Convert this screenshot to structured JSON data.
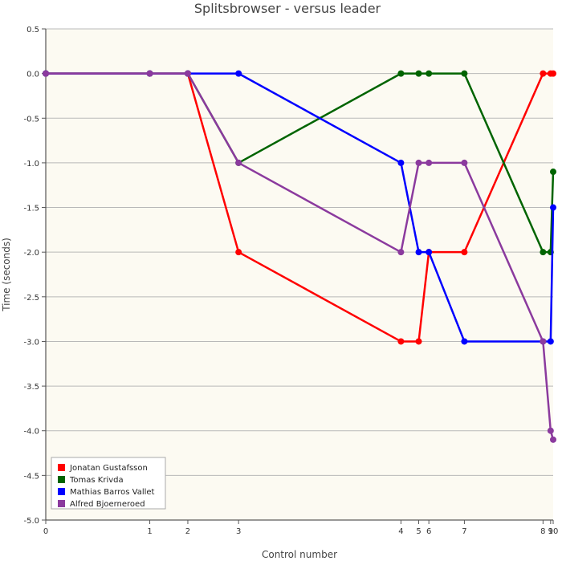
{
  "chart_data": {
    "type": "line",
    "title": "Splitsbrowser - versus leader",
    "xlabel": "Control number",
    "ylabel": "Time (seconds)",
    "x_ticks": [
      0,
      1,
      2,
      3,
      4,
      5,
      6,
      7,
      8,
      9,
      10
    ],
    "x_tick_labels": [
      "0",
      "1",
      "2",
      "3",
      "4",
      "5",
      "6",
      "7",
      "8",
      "9",
      "10"
    ],
    "x_positions": [
      0,
      2.05,
      2.8,
      3.8,
      7.0,
      7.35,
      7.55,
      8.25,
      9.8,
      9.95,
      10.0
    ],
    "xlim": [
      0,
      10
    ],
    "ylim": [
      -5.0,
      0.5
    ],
    "y_ticks": [
      0.5,
      0.0,
      -0.5,
      -1.0,
      -1.5,
      -2.0,
      -2.5,
      -3.0,
      -3.5,
      -4.0,
      -4.5,
      -5.0
    ],
    "y_tick_labels": [
      "0.5",
      "0.0",
      "-0.5",
      "-1.0",
      "-1.5",
      "-2.0",
      "-2.5",
      "-3.0",
      "-3.5",
      "-4.0",
      "-4.5",
      "-5.0"
    ],
    "grid": true,
    "legend_position": "bottom-left",
    "background_color": "#fcfaf2",
    "series": [
      {
        "name": "Jonatan Gustafsson",
        "color": "#ff0000",
        "values": [
          0,
          0,
          0,
          -2,
          -3,
          -3,
          -2,
          -2,
          0,
          0,
          0
        ]
      },
      {
        "name": "Tomas Krivda",
        "color": "#006400",
        "values": [
          0,
          0,
          0,
          -1,
          0,
          0,
          0,
          0,
          -2,
          -2,
          -1.1
        ]
      },
      {
        "name": "Mathias Barros Vallet",
        "color": "#0000ff",
        "values": [
          0,
          0,
          0,
          0,
          -1,
          -2,
          -2,
          -3,
          -3,
          -3,
          -1.5
        ]
      },
      {
        "name": "Alfred Bjoerneroed",
        "color": "#8b3a9e",
        "values": [
          0,
          0,
          0,
          -1,
          -2,
          -1,
          -1,
          -1,
          -3,
          -4,
          -4.1
        ]
      }
    ]
  }
}
